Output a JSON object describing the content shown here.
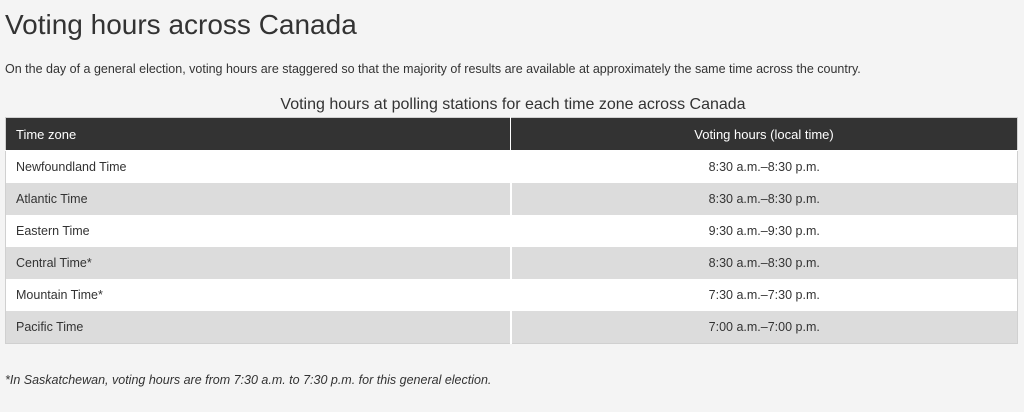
{
  "page_title": "Voting hours across Canada",
  "intro": "On the day of a general election, voting hours are staggered so that the majority of results are available at approximately the same time across the country.",
  "table": {
    "caption": "Voting hours at polling stations for each time zone across Canada",
    "headers": [
      "Time zone",
      "Voting hours (local time)"
    ],
    "rows": [
      {
        "zone": "Newfoundland Time",
        "hours": "8:30 a.m.–8:30 p.m."
      },
      {
        "zone": "Atlantic Time",
        "hours": "8:30 a.m.–8:30 p.m."
      },
      {
        "zone": "Eastern Time",
        "hours": "9:30 a.m.–9:30 p.m."
      },
      {
        "zone": "Central Time*",
        "hours": "8:30 a.m.–8:30 p.m."
      },
      {
        "zone": "Mountain Time*",
        "hours": "7:30 a.m.–7:30 p.m."
      },
      {
        "zone": "Pacific Time",
        "hours": "7:00 a.m.–7:00 p.m."
      }
    ]
  },
  "footnote": "*In Saskatchewan, voting hours are from 7:30 a.m. to 7:30 p.m. for this general election.",
  "colors": {
    "page_background": "#f4f4f4",
    "header_background": "#333333",
    "header_text": "#ffffff",
    "row_odd": "#ffffff",
    "row_even": "#dcdcdc",
    "text": "#333333"
  }
}
